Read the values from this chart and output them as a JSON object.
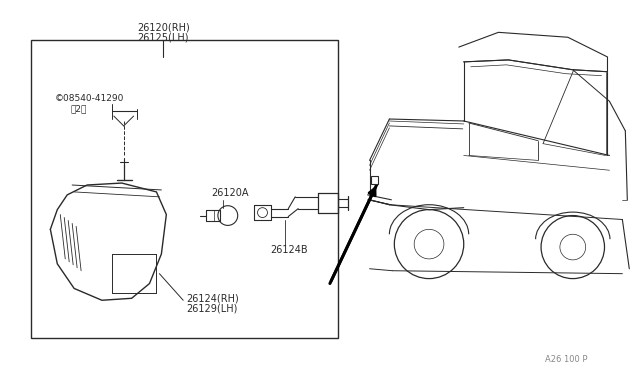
{
  "bg_color": "#ffffff",
  "line_color": "#2a2a2a",
  "text_color": "#2a2a2a",
  "fig_width": 6.4,
  "fig_height": 3.72,
  "dpi": 100,
  "label_top1": "26120(RH)",
  "label_top2": "26125(LH)",
  "label_screw1": "©08540-41290",
  "label_screw2": "（2）",
  "label_bulb": "26120A",
  "label_socket": "26124B",
  "label_bot1": "26124(RH)",
  "label_bot2": "26129(LH)",
  "page_ref": "A26 100 P"
}
